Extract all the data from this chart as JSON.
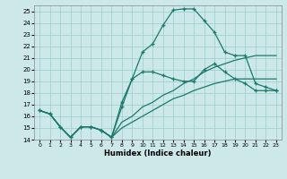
{
  "xlabel": "Humidex (Indice chaleur)",
  "bg_color": "#cce8e8",
  "grid_color": "#99cccc",
  "line_color": "#1a7a6e",
  "xlim": [
    -0.5,
    23.5
  ],
  "ylim": [
    14,
    25.5
  ],
  "xticks": [
    0,
    1,
    2,
    3,
    4,
    5,
    6,
    7,
    8,
    9,
    10,
    11,
    12,
    13,
    14,
    15,
    16,
    17,
    18,
    19,
    20,
    21,
    22,
    23
  ],
  "yticks": [
    14,
    15,
    16,
    17,
    18,
    19,
    20,
    21,
    22,
    23,
    24,
    25
  ],
  "line_high_x": [
    0,
    1,
    2,
    3,
    4,
    5,
    6,
    7,
    8,
    9,
    10,
    11,
    12,
    13,
    14,
    15,
    16,
    17,
    18,
    19,
    20,
    21,
    22,
    23
  ],
  "line_high_y": [
    16.5,
    16.2,
    15.1,
    14.2,
    15.1,
    15.1,
    14.8,
    14.2,
    17.2,
    19.2,
    21.5,
    22.2,
    23.8,
    25.1,
    25.2,
    25.2,
    24.2,
    23.2,
    21.5,
    21.2,
    21.2,
    18.8,
    18.5,
    18.2
  ],
  "line_med_x": [
    0,
    1,
    2,
    3,
    4,
    5,
    6,
    7,
    8,
    9,
    10,
    11,
    12,
    13,
    14,
    15,
    16,
    17,
    18,
    19,
    20,
    21,
    22,
    23
  ],
  "line_med_y": [
    16.5,
    16.2,
    15.1,
    14.2,
    15.1,
    15.1,
    14.8,
    14.2,
    16.8,
    19.2,
    19.8,
    19.8,
    19.5,
    19.2,
    19.0,
    19.0,
    20.0,
    20.5,
    19.8,
    19.2,
    18.8,
    18.2,
    18.2,
    18.2
  ],
  "line_up1_x": [
    0,
    1,
    2,
    3,
    4,
    5,
    6,
    7,
    8,
    9,
    10,
    11,
    12,
    13,
    14,
    15,
    16,
    17,
    18,
    19,
    20,
    21,
    22,
    23
  ],
  "line_up1_y": [
    16.5,
    16.2,
    15.1,
    14.2,
    15.1,
    15.1,
    14.8,
    14.2,
    15.5,
    16.0,
    16.8,
    17.2,
    17.8,
    18.2,
    18.8,
    19.2,
    19.8,
    20.2,
    20.5,
    20.8,
    21.0,
    21.2,
    21.2,
    21.2
  ],
  "line_up2_x": [
    0,
    1,
    2,
    3,
    4,
    5,
    6,
    7,
    8,
    9,
    10,
    11,
    12,
    13,
    14,
    15,
    16,
    17,
    18,
    19,
    20,
    21,
    22,
    23
  ],
  "line_up2_y": [
    16.5,
    16.2,
    15.1,
    14.2,
    15.1,
    15.1,
    14.8,
    14.2,
    15.0,
    15.5,
    16.0,
    16.5,
    17.0,
    17.5,
    17.8,
    18.2,
    18.5,
    18.8,
    19.0,
    19.2,
    19.2,
    19.2,
    19.2,
    19.2
  ]
}
